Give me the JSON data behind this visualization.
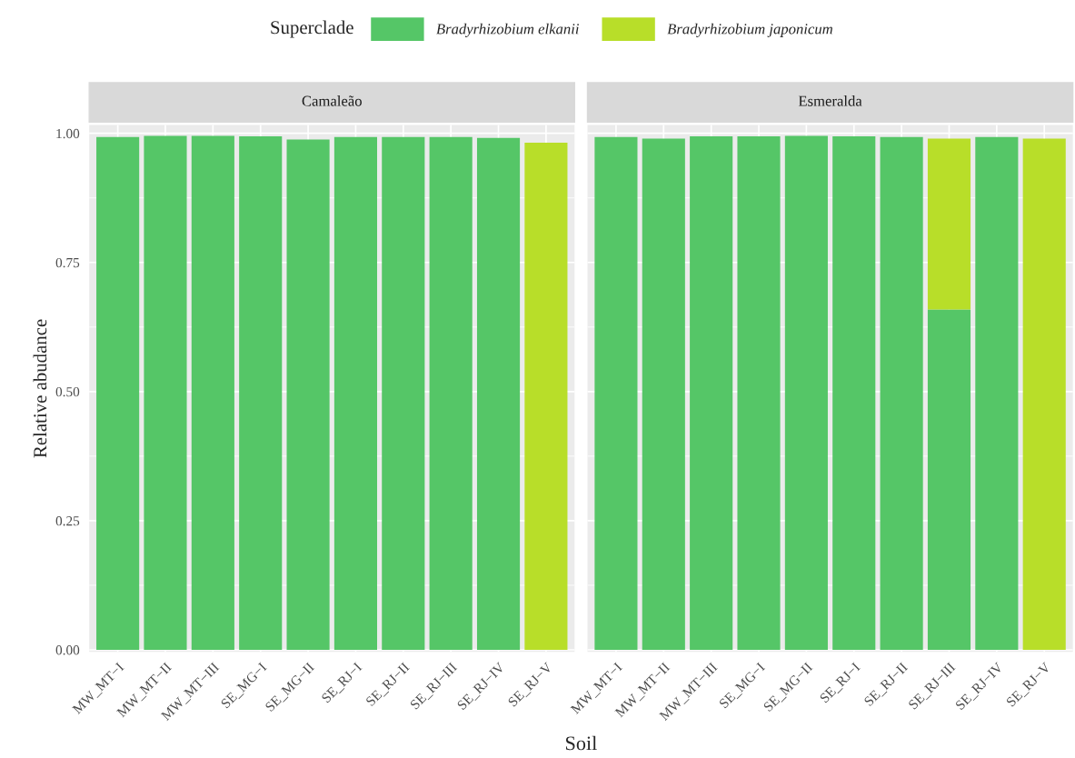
{
  "chart_data": [
    {
      "type": "bar",
      "title": "Camaleão",
      "ylabel": "Relative abudance",
      "xlabel": "Soil",
      "legend_title": "Superclade",
      "legend": "top",
      "stacked": true,
      "grid": true,
      "tick_labels": "xy",
      "categories": [
        "MW_MT−I",
        "MW_MT−II",
        "MW_MT−III",
        "SE_MG−I",
        "SE_MG−II",
        "SE_RJ−I",
        "SE_RJ−II",
        "SE_RJ−III",
        "SE_RJ−IV",
        "SE_RJ−V"
      ],
      "series": [
        {
          "name": "Bradyrhizobium elkanii",
          "color": "#55c667",
          "values": [
            0.993,
            0.995,
            0.995,
            0.994,
            0.988,
            0.993,
            0.993,
            0.993,
            0.991,
            0
          ]
        },
        {
          "name": "Bradyrhizobium japonicum",
          "color": "#b8de29",
          "values": [
            0,
            0,
            0,
            0,
            0,
            0,
            0,
            0,
            0,
            0.982
          ]
        }
      ],
      "ylim": [
        -0.004,
        1.016
      ],
      "yticks": [
        {
          "value": 0,
          "label": "0.00"
        },
        {
          "value": 0.25,
          "label": "0.25"
        },
        {
          "value": 0.5,
          "label": "0.50"
        },
        {
          "value": 0.75,
          "label": "0.75"
        },
        {
          "value": 1,
          "label": "1.00"
        }
      ]
    },
    {
      "type": "bar",
      "title": "Esmeralda",
      "stacked": true,
      "grid": true,
      "tick_labels": "x",
      "categories": [
        "MW_MT−I",
        "MW_MT−II",
        "MW_MT−III",
        "SE_MG−I",
        "SE_MG−II",
        "SE_RJ−I",
        "SE_RJ−II",
        "SE_RJ−III",
        "SE_RJ−IV",
        "SE_RJ−V"
      ],
      "series": [
        {
          "color": "#55c667",
          "values": [
            0.993,
            0.99,
            0.994,
            0.994,
            0.995,
            0.994,
            0.993,
            0.659,
            0.993,
            0
          ]
        },
        {
          "color": "#b8de29",
          "values": [
            0,
            0,
            0,
            0,
            0,
            0,
            0,
            0.331,
            0,
            0.99
          ]
        }
      ],
      "ylim": [
        -0.004,
        1.016
      ],
      "yticks": [
        {
          "value": 0,
          "label": null
        },
        {
          "value": 0.25,
          "label": null
        },
        {
          "value": 0.5,
          "label": null
        },
        {
          "value": 0.75,
          "label": null
        },
        {
          "value": 1,
          "label": null
        }
      ]
    }
  ]
}
